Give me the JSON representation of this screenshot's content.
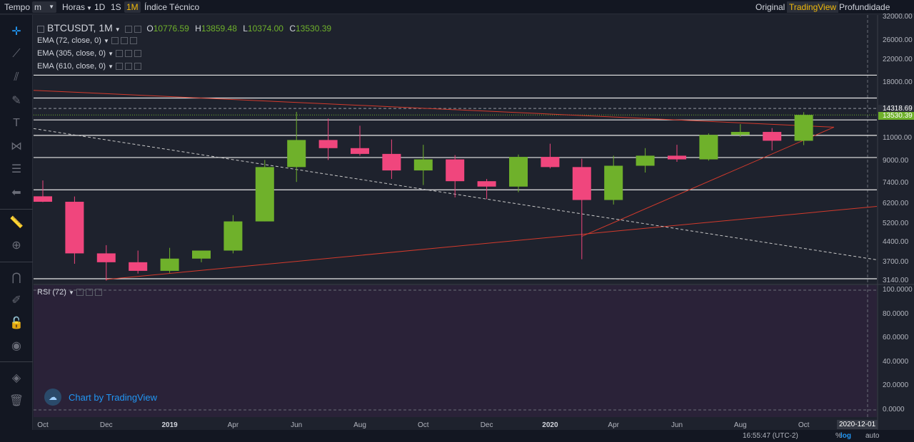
{
  "topbar": {
    "tempo": "Tempo",
    "minutes_select": "m",
    "hours_select": "Horas",
    "interval_1d": "1D",
    "interval_1s": "1S",
    "interval_1m": "1M",
    "indicators": "Índice Técnico",
    "view_original": "Original",
    "view_tradingview": "TradingView",
    "view_depth": "Profundidade"
  },
  "legend": {
    "symbol": "BTCUSDT, 1M",
    "open_key": "O",
    "open": "10776.59",
    "high_key": "H",
    "high": "13859.48",
    "low_key": "L",
    "low": "10374.00",
    "close_key": "C",
    "close": "13530.39"
  },
  "indicators": {
    "ema1": "EMA (72, close, 0)",
    "ema2": "EMA (305, close, 0)",
    "ema3": "EMA (610, close, 0)",
    "rsi": "RSI (72)"
  },
  "price_axis": [
    "32000.00",
    "26000.00",
    "22000.00",
    "18000.00",
    "11000.00",
    "9000.00",
    "7400.00",
    "6200.00",
    "5200.00",
    "4400.00",
    "3700.00",
    "3140.00"
  ],
  "price_tags": {
    "mark": "14318.69",
    "last": "13530.39"
  },
  "rsi_axis": [
    "100.0000",
    "80.0000",
    "60.0000",
    "40.0000",
    "20.0000",
    "0.0000"
  ],
  "time_axis": [
    "Oct",
    "Dec",
    "2019",
    "Apr",
    "Jun",
    "Aug",
    "Oct",
    "Dec",
    "2020",
    "Apr",
    "Jun",
    "Aug",
    "Oct"
  ],
  "time_axis_bold": [
    "2019",
    "2020"
  ],
  "date_tag": "2020-12-01",
  "bottombar": {
    "clock": "16:55:47 (UTC-2)",
    "percent": "%",
    "log": "log",
    "auto": "auto"
  },
  "watermark": "Chart by TradingView",
  "colors": {
    "up": "#6fb12b",
    "down": "#f0467d",
    "background": "#1e222d",
    "rsi_band": "#2a2238",
    "trendline": "#d33a2c",
    "accent": "#f0b90b",
    "blue": "#2196f3"
  },
  "chart_data": {
    "type": "candlestick",
    "scale": "log",
    "ylim": [
      3140,
      32000
    ],
    "categories": [
      "2018-10",
      "2018-11",
      "2018-12",
      "2019-01",
      "2019-02",
      "2019-03",
      "2019-04",
      "2019-05",
      "2019-06",
      "2019-07",
      "2019-08",
      "2019-09",
      "2019-10",
      "2019-11",
      "2019-12",
      "2020-01",
      "2020-02",
      "2020-03",
      "2020-04",
      "2020-05",
      "2020-06",
      "2020-07",
      "2020-08",
      "2020-09",
      "2020-10"
    ],
    "candles": [
      {
        "o": 6610,
        "h": 7600,
        "l": 6280,
        "c": 6300
      },
      {
        "o": 6300,
        "h": 6600,
        "l": 3650,
        "c": 4000
      },
      {
        "o": 4000,
        "h": 4300,
        "l": 3150,
        "c": 3700
      },
      {
        "o": 3700,
        "h": 4100,
        "l": 3350,
        "c": 3430
      },
      {
        "o": 3430,
        "h": 4200,
        "l": 3370,
        "c": 3820
      },
      {
        "o": 3820,
        "h": 4100,
        "l": 3700,
        "c": 4100
      },
      {
        "o": 4100,
        "h": 5600,
        "l": 4000,
        "c": 5300
      },
      {
        "o": 5300,
        "h": 9100,
        "l": 5300,
        "c": 8550
      },
      {
        "o": 8550,
        "h": 13900,
        "l": 7500,
        "c": 10850
      },
      {
        "o": 10850,
        "h": 13100,
        "l": 9100,
        "c": 10100
      },
      {
        "o": 10100,
        "h": 12300,
        "l": 9450,
        "c": 9600
      },
      {
        "o": 9600,
        "h": 10900,
        "l": 7700,
        "c": 8300
      },
      {
        "o": 8300,
        "h": 10400,
        "l": 7300,
        "c": 9150
      },
      {
        "o": 9150,
        "h": 9500,
        "l": 6550,
        "c": 7550
      },
      {
        "o": 7550,
        "h": 7700,
        "l": 6450,
        "c": 7200
      },
      {
        "o": 7200,
        "h": 9550,
        "l": 6850,
        "c": 9350
      },
      {
        "o": 9350,
        "h": 10500,
        "l": 8450,
        "c": 8550
      },
      {
        "o": 8550,
        "h": 9200,
        "l": 3800,
        "c": 6400
      },
      {
        "o": 6400,
        "h": 9450,
        "l": 6150,
        "c": 8650
      },
      {
        "o": 8650,
        "h": 10100,
        "l": 8150,
        "c": 9450
      },
      {
        "o": 9450,
        "h": 10400,
        "l": 8950,
        "c": 9150
      },
      {
        "o": 9150,
        "h": 11500,
        "l": 9050,
        "c": 11350
      },
      {
        "o": 11350,
        "h": 12480,
        "l": 11150,
        "c": 11650
      },
      {
        "o": 11650,
        "h": 12050,
        "l": 9900,
        "c": 10780
      },
      {
        "o": 10776.59,
        "h": 13859.48,
        "l": 10374.0,
        "c": 13530.39
      }
    ],
    "horizontal_levels": [
      19200,
      15700,
      12950,
      11300,
      9300,
      7000,
      3200
    ],
    "dotted_levels": [
      14318.69,
      13530.39
    ],
    "rsi_range": [
      0,
      100
    ]
  }
}
